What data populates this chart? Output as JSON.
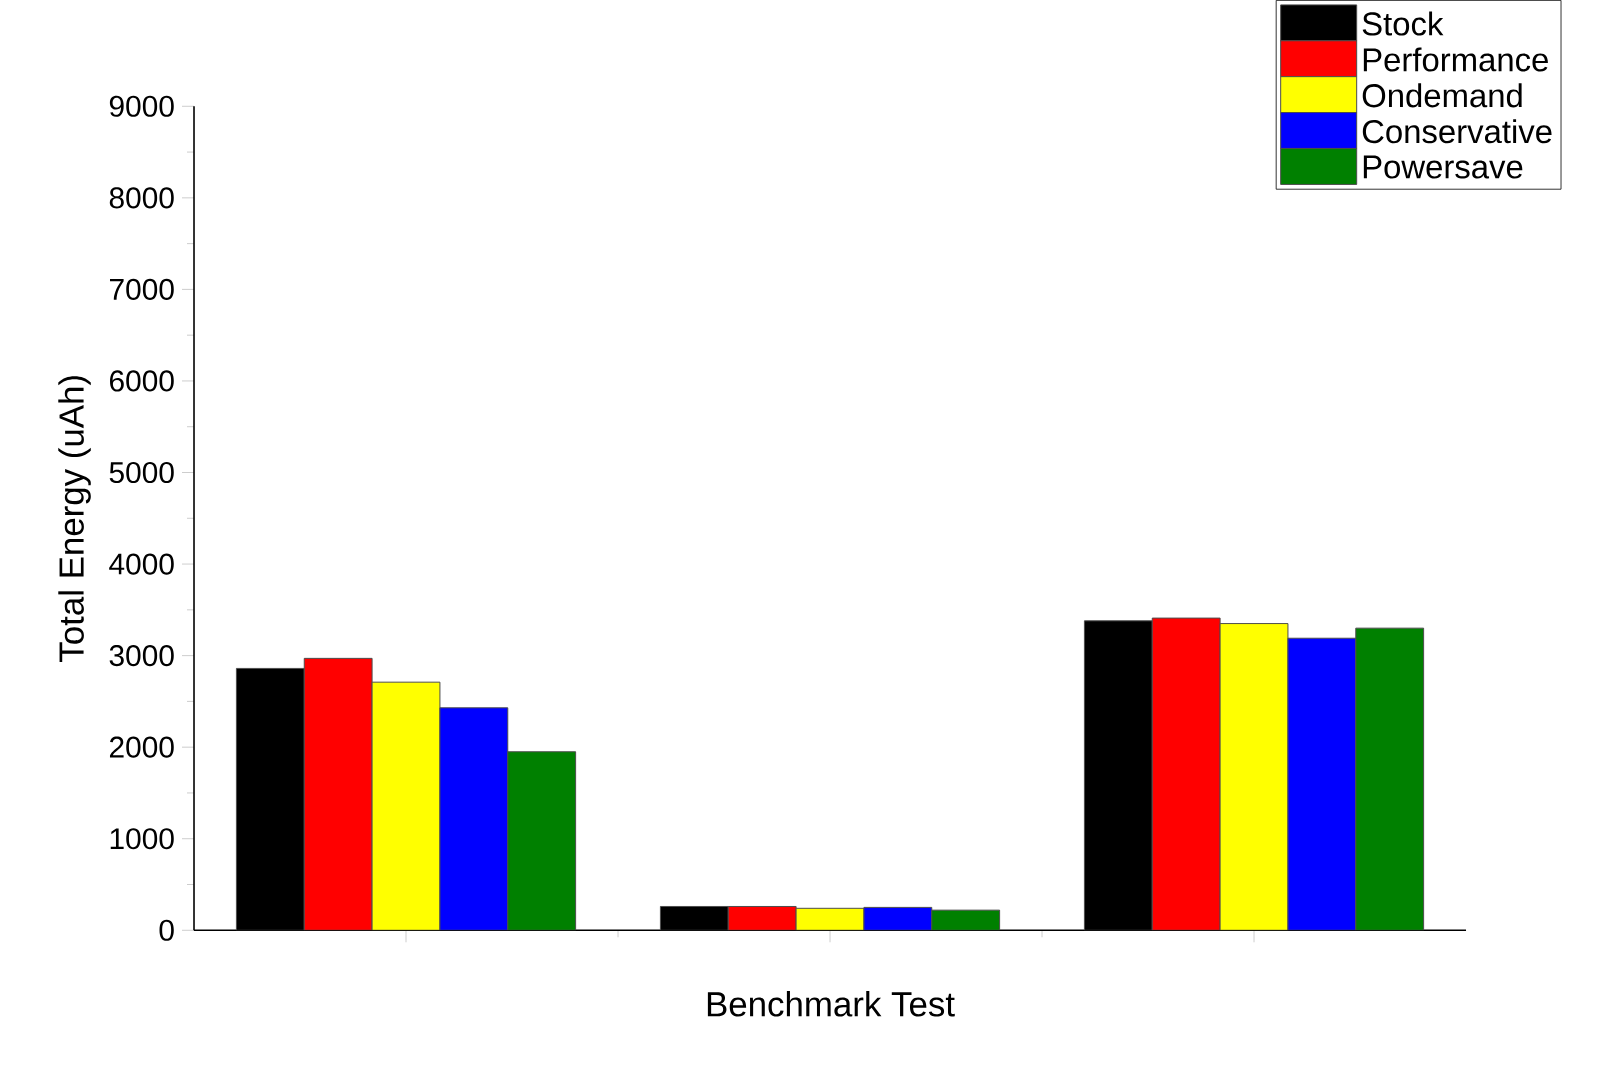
{
  "chart_data": {
    "type": "bar",
    "xlabel": "Benchmark Test",
    "ylabel": "Total Energy (uAh)",
    "categories": [
      null,
      null,
      null
    ],
    "series": [
      {
        "name": "Stock",
        "color": "#000000",
        "values": [
          2860,
          260,
          3380
        ]
      },
      {
        "name": "Performance",
        "color": "#ff0000",
        "values": [
          2970,
          260,
          3410
        ]
      },
      {
        "name": "Ondemand",
        "color": "#ffff00",
        "values": [
          2710,
          240,
          3350
        ]
      },
      {
        "name": "Conservative",
        "color": "#0000ff",
        "values": [
          2430,
          250,
          3190
        ]
      },
      {
        "name": "Powersave",
        "color": "#008000",
        "values": [
          1950,
          220,
          3300
        ]
      }
    ],
    "ylim": [
      0,
      9000
    ],
    "yticks": [
      0,
      1000,
      2000,
      3000,
      4000,
      5000,
      6000,
      7000,
      8000,
      9000
    ],
    "grid": false,
    "legend": "top right"
  }
}
